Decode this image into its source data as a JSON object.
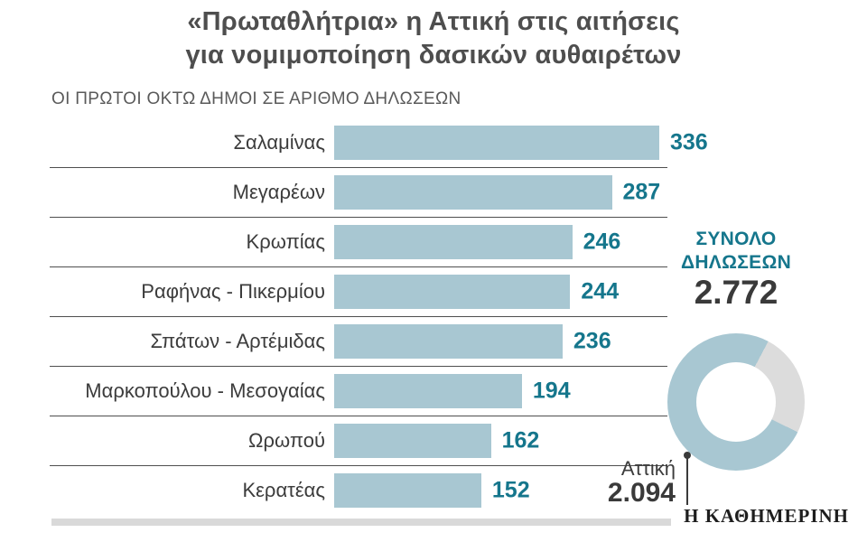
{
  "header": {
    "title_line1": "«Πρωταθλήτρια» η Αττική στις αιτήσεις",
    "title_line2": "για νομιμοποίηση δασικών αυθαιρέτων"
  },
  "chart_data": [
    {
      "type": "bar",
      "orientation": "horizontal",
      "title": "ΟΙ ΠΡΩΤΟΙ ΟΚΤΩ ΔΗΜΟΙ ΣΕ ΑΡΙΘΜΟ ΔΗΛΩΣΕΩΝ",
      "categories": [
        "Σαλαμίνας",
        "Μεγαρέων",
        "Κρωπίας",
        "Ραφήνας - Πικερμίου",
        "Σπάτων - Αρτέμιδας",
        "Μαρκοπούλου - Μεσογαίας",
        "Ωρωπού",
        "Κερατέας"
      ],
      "values": [
        336,
        287,
        246,
        244,
        236,
        194,
        162,
        152
      ],
      "xlim": [
        0,
        336
      ],
      "bar_color": "#a8c7d2",
      "value_color": "#15768c",
      "grid": "row-separator-lines",
      "legend": "none"
    },
    {
      "type": "pie",
      "subtype": "donut",
      "title": "ΣΥΝΟΛΟ ΔΗΛΩΣΕΩΝ",
      "total_display": "2.772",
      "total_value": 2772,
      "slices": [
        {
          "label": "Αττική",
          "value": 2094,
          "display": "2.094",
          "color": "#a8c7d2"
        },
        {
          "label": "",
          "value": 678,
          "display": "",
          "color": "#dcdcdc"
        }
      ],
      "gray_slice_start_deg": 28
    }
  ],
  "footer": {
    "brand": "Η ΚΑΘΗΜΕΡΙΝΗ"
  }
}
